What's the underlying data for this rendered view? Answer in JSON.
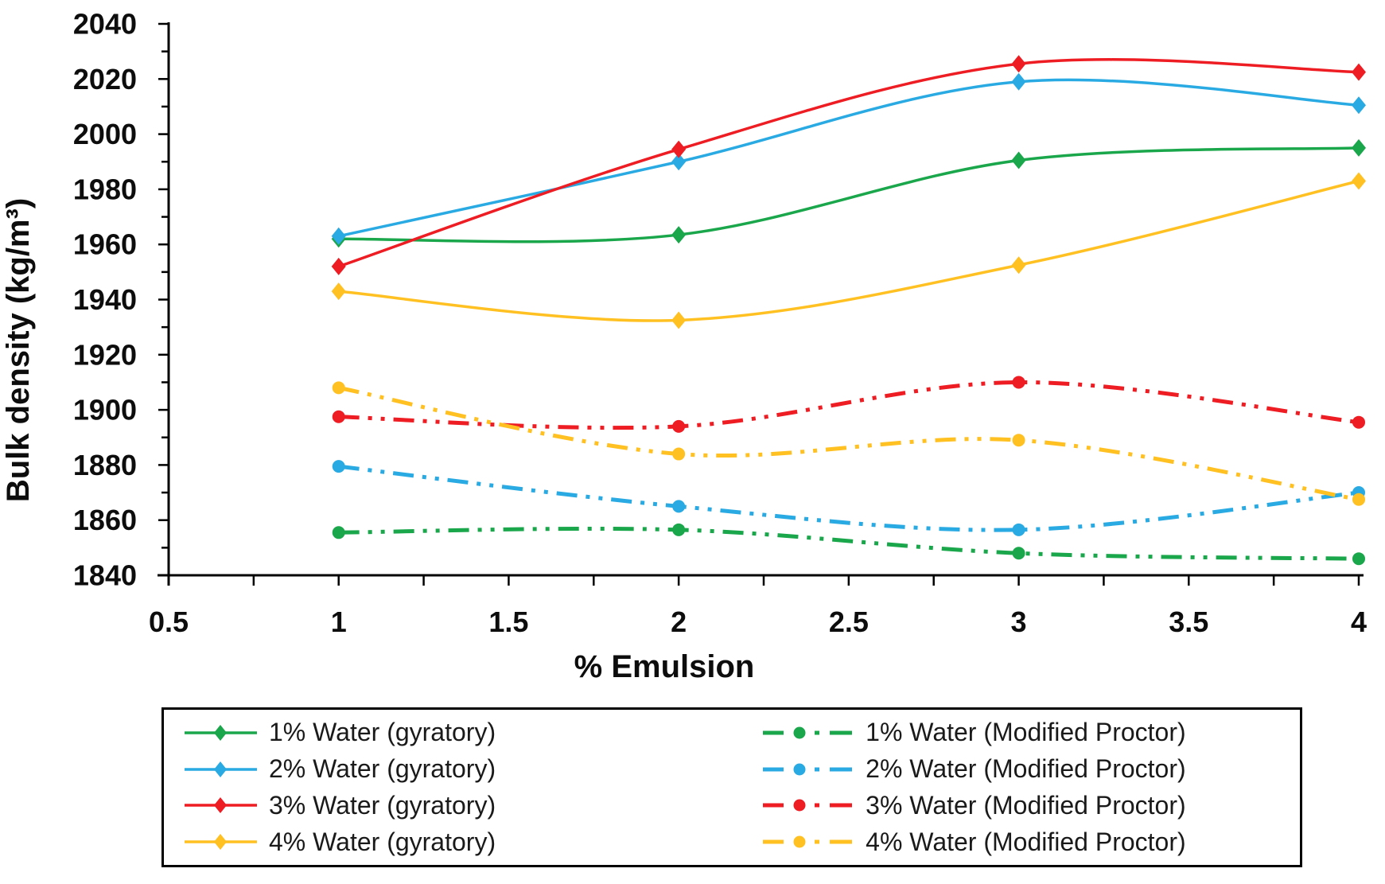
{
  "chart_data": {
    "type": "line",
    "title": "",
    "xlabel": "% Emulsion",
    "ylabel": "Bulk density (kg/m³)",
    "grid": false,
    "legend_position": "bottom",
    "x_axis": {
      "min": 0.5,
      "max": 4,
      "label_step": 0.5,
      "tick_step": 0.25,
      "tick_labels": [
        "0.5",
        "1",
        "1.5",
        "2",
        "2.5",
        "3",
        "3.5",
        "4"
      ]
    },
    "y_axis": {
      "min": 1840,
      "max": 2040,
      "label_step": 20,
      "tick_step": 10,
      "tick_labels": [
        "1840",
        "1860",
        "1880",
        "1900",
        "1920",
        "1940",
        "1960",
        "1980",
        "2000",
        "2020",
        "2040"
      ]
    },
    "x": [
      1,
      2,
      3,
      4
    ],
    "series": [
      {
        "name": "1% Water (gyratory)",
        "group": "gyratory",
        "style": "solid",
        "marker": "diamond",
        "color": "#1AA64B",
        "values": [
          1962,
          1963.5,
          1990.5,
          1995
        ]
      },
      {
        "name": "2% Water (gyratory)",
        "group": "gyratory",
        "style": "solid",
        "marker": "diamond",
        "color": "#2AAAE2",
        "values": [
          1963,
          1990,
          2019,
          2010.5
        ]
      },
      {
        "name": "3% Water (gyratory)",
        "group": "gyratory",
        "style": "solid",
        "marker": "diamond",
        "color": "#EE1C23",
        "values": [
          1952,
          1994.5,
          2025.5,
          2022.5
        ]
      },
      {
        "name": "4% Water (gyratory)",
        "group": "gyratory",
        "style": "solid",
        "marker": "diamond",
        "color": "#FFC022",
        "values": [
          1943,
          1932.5,
          1952.5,
          1983
        ]
      },
      {
        "name": "1% Water (Modified Proctor)",
        "group": "modified-proctor",
        "style": "dashdotdot",
        "marker": "circle",
        "color": "#1AA64B",
        "values": [
          1855.5,
          1856.5,
          1848,
          1846
        ]
      },
      {
        "name": "2% Water (Modified Proctor)",
        "group": "modified-proctor",
        "style": "dashdotdot",
        "marker": "circle",
        "color": "#2AAAE2",
        "values": [
          1879.5,
          1865,
          1856.5,
          1870
        ]
      },
      {
        "name": "3% Water (Modified Proctor)",
        "group": "modified-proctor",
        "style": "dashdotdot",
        "marker": "circle",
        "color": "#EE1C23",
        "values": [
          1897.5,
          1894,
          1910,
          1895.5
        ]
      },
      {
        "name": "4% Water (Modified Proctor)",
        "group": "modified-proctor",
        "style": "dashdotdot",
        "marker": "circle",
        "color": "#FFC022",
        "values": [
          1908,
          1884,
          1889,
          1867.5
        ]
      }
    ]
  }
}
